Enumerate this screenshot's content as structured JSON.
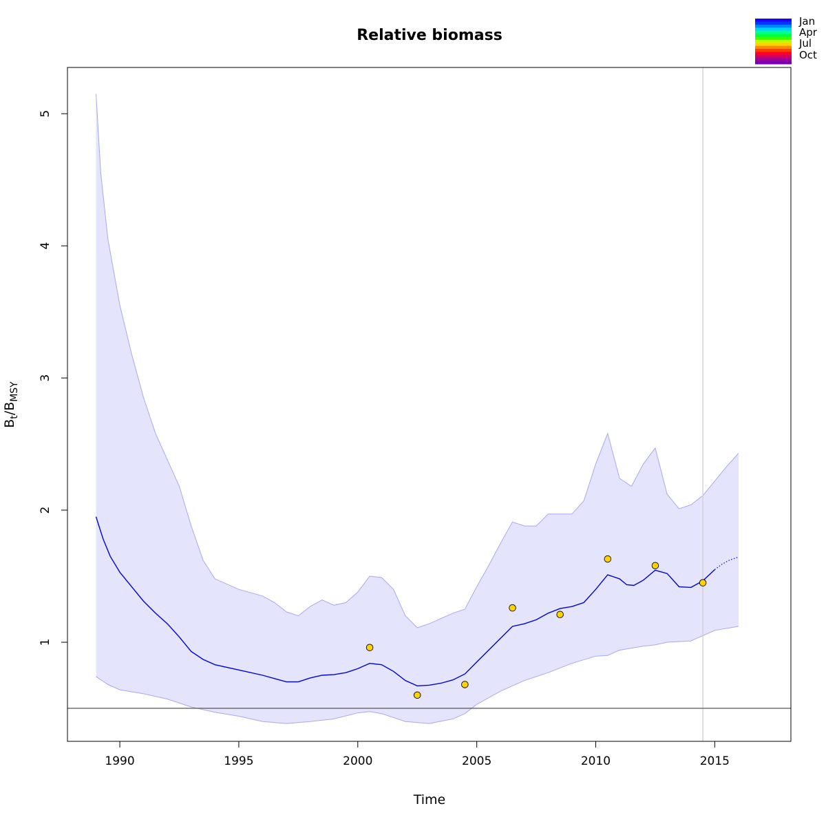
{
  "chart_data": {
    "type": "line",
    "title": "Relative biomass",
    "xlabel": "Time",
    "ylabel": {
      "main": "B",
      "sub1": "t",
      "sep": "/B",
      "sub2": "MSY"
    },
    "xlim": [
      1987.8,
      2018.2
    ],
    "ylim": [
      0.25,
      5.35
    ],
    "x_ticks": [
      1990,
      1995,
      2000,
      2005,
      2010,
      2015
    ],
    "y_ticks": [
      1,
      2,
      3,
      4,
      5
    ],
    "grid": false,
    "colors": {
      "line": "#0000dd",
      "ci_fill": "#e4e4fc",
      "ci_stroke": "#a8a8f0",
      "point_fill": "#ffd200",
      "reference_line": "#555555",
      "vline": "#cccccc"
    },
    "estimate": [
      [
        1989.0,
        1.95
      ],
      [
        1989.3,
        1.78
      ],
      [
        1989.6,
        1.65
      ],
      [
        1990.0,
        1.53
      ],
      [
        1990.5,
        1.42
      ],
      [
        1991.0,
        1.31
      ],
      [
        1991.5,
        1.22
      ],
      [
        1992.0,
        1.14
      ],
      [
        1992.5,
        1.04
      ],
      [
        1993.0,
        0.93
      ],
      [
        1993.5,
        0.87
      ],
      [
        1994.0,
        0.83
      ],
      [
        1995.0,
        0.79
      ],
      [
        1996.0,
        0.75
      ],
      [
        1996.5,
        0.725
      ],
      [
        1997.0,
        0.7
      ],
      [
        1997.5,
        0.7
      ],
      [
        1998.0,
        0.73
      ],
      [
        1998.5,
        0.75
      ],
      [
        1999.0,
        0.755
      ],
      [
        1999.5,
        0.77
      ],
      [
        2000.0,
        0.8
      ],
      [
        2000.5,
        0.84
      ],
      [
        2001.0,
        0.83
      ],
      [
        2001.5,
        0.78
      ],
      [
        2002.0,
        0.71
      ],
      [
        2002.5,
        0.67
      ],
      [
        2003.0,
        0.675
      ],
      [
        2003.5,
        0.69
      ],
      [
        2004.0,
        0.715
      ],
      [
        2004.5,
        0.76
      ],
      [
        2005.0,
        0.85
      ],
      [
        2005.5,
        0.94
      ],
      [
        2006.0,
        1.03
      ],
      [
        2006.5,
        1.12
      ],
      [
        2007.0,
        1.14
      ],
      [
        2007.5,
        1.17
      ],
      [
        2008.0,
        1.22
      ],
      [
        2008.5,
        1.255
      ],
      [
        2009.0,
        1.27
      ],
      [
        2009.5,
        1.3
      ],
      [
        2010.0,
        1.4
      ],
      [
        2010.5,
        1.51
      ],
      [
        2011.0,
        1.48
      ],
      [
        2011.3,
        1.435
      ],
      [
        2011.6,
        1.43
      ],
      [
        2012.0,
        1.47
      ],
      [
        2012.5,
        1.545
      ],
      [
        2013.0,
        1.52
      ],
      [
        2013.5,
        1.42
      ],
      [
        2014.0,
        1.415
      ],
      [
        2014.5,
        1.465
      ],
      [
        2015.0,
        1.55
      ]
    ],
    "prediction": [
      [
        2015.0,
        1.55
      ],
      [
        2015.3,
        1.59
      ],
      [
        2015.6,
        1.62
      ],
      [
        2016.0,
        1.645
      ]
    ],
    "ci_upper": [
      [
        1989.0,
        5.15
      ],
      [
        1989.2,
        4.55
      ],
      [
        1989.5,
        4.05
      ],
      [
        1990.0,
        3.55
      ],
      [
        1990.5,
        3.18
      ],
      [
        1991.0,
        2.85
      ],
      [
        1991.5,
        2.58
      ],
      [
        1992.0,
        2.38
      ],
      [
        1992.5,
        2.18
      ],
      [
        1993.0,
        1.88
      ],
      [
        1993.5,
        1.62
      ],
      [
        1994.0,
        1.48
      ],
      [
        1995.0,
        1.4
      ],
      [
        1996.0,
        1.35
      ],
      [
        1996.5,
        1.3
      ],
      [
        1997.0,
        1.23
      ],
      [
        1997.5,
        1.2
      ],
      [
        1998.0,
        1.27
      ],
      [
        1998.5,
        1.32
      ],
      [
        1999.0,
        1.28
      ],
      [
        1999.5,
        1.3
      ],
      [
        2000.0,
        1.38
      ],
      [
        2000.5,
        1.5
      ],
      [
        2001.0,
        1.49
      ],
      [
        2001.5,
        1.4
      ],
      [
        2002.0,
        1.2
      ],
      [
        2002.5,
        1.11
      ],
      [
        2003.0,
        1.14
      ],
      [
        2003.5,
        1.18
      ],
      [
        2004.0,
        1.22
      ],
      [
        2004.5,
        1.25
      ],
      [
        2005.0,
        1.42
      ],
      [
        2005.5,
        1.58
      ],
      [
        2006.0,
        1.75
      ],
      [
        2006.5,
        1.91
      ],
      [
        2007.0,
        1.88
      ],
      [
        2007.5,
        1.88
      ],
      [
        2008.0,
        1.97
      ],
      [
        2008.5,
        1.97
      ],
      [
        2009.0,
        1.97
      ],
      [
        2009.5,
        2.07
      ],
      [
        2010.0,
        2.35
      ],
      [
        2010.5,
        2.58
      ],
      [
        2011.0,
        2.24
      ],
      [
        2011.5,
        2.18
      ],
      [
        2012.0,
        2.35
      ],
      [
        2012.5,
        2.47
      ],
      [
        2013.0,
        2.12
      ],
      [
        2013.5,
        2.01
      ],
      [
        2014.0,
        2.04
      ],
      [
        2014.5,
        2.11
      ],
      [
        2015.0,
        2.22
      ],
      [
        2015.5,
        2.33
      ],
      [
        2016.0,
        2.43
      ]
    ],
    "ci_lower": [
      [
        1989.0,
        0.74
      ],
      [
        1989.5,
        0.68
      ],
      [
        1990.0,
        0.64
      ],
      [
        1991.0,
        0.61
      ],
      [
        1992.0,
        0.57
      ],
      [
        1993.0,
        0.51
      ],
      [
        1994.0,
        0.47
      ],
      [
        1995.0,
        0.44
      ],
      [
        1996.0,
        0.4
      ],
      [
        1997.0,
        0.385
      ],
      [
        1998.0,
        0.4
      ],
      [
        1999.0,
        0.42
      ],
      [
        2000.0,
        0.465
      ],
      [
        2000.5,
        0.475
      ],
      [
        2001.0,
        0.46
      ],
      [
        2002.0,
        0.4
      ],
      [
        2003.0,
        0.385
      ],
      [
        2004.0,
        0.42
      ],
      [
        2004.5,
        0.46
      ],
      [
        2005.0,
        0.53
      ],
      [
        2006.0,
        0.63
      ],
      [
        2007.0,
        0.71
      ],
      [
        2008.0,
        0.77
      ],
      [
        2009.0,
        0.84
      ],
      [
        2010.0,
        0.895
      ],
      [
        2010.5,
        0.9
      ],
      [
        2011.0,
        0.94
      ],
      [
        2012.0,
        0.97
      ],
      [
        2012.5,
        0.98
      ],
      [
        2013.0,
        1.0
      ],
      [
        2014.0,
        1.01
      ],
      [
        2015.0,
        1.09
      ],
      [
        2016.0,
        1.12
      ]
    ],
    "observations": [
      {
        "x": 2000.5,
        "y": 0.96
      },
      {
        "x": 2002.5,
        "y": 0.6
      },
      {
        "x": 2004.5,
        "y": 0.68
      },
      {
        "x": 2006.5,
        "y": 1.26
      },
      {
        "x": 2008.5,
        "y": 1.21
      },
      {
        "x": 2010.5,
        "y": 1.63
      },
      {
        "x": 2012.5,
        "y": 1.58
      },
      {
        "x": 2014.5,
        "y": 1.45
      }
    ],
    "reference_line_y": 0.5,
    "vline_x": 2014.5,
    "legend": {
      "placement": "top-right, outside plot",
      "labels": [
        "Jan",
        "Apr",
        "Jul",
        "Oct"
      ],
      "colors": [
        "#1e00ff",
        "#0036ff",
        "#0084ff",
        "#00d2ff",
        "#00ff8c",
        "#00ff3c",
        "#3cff00",
        "#b4ff00",
        "#ffd200",
        "#ff8700",
        "#ff3c00",
        "#ff0028",
        "#d2005a",
        "#a00096",
        "#7800b4"
      ]
    }
  }
}
